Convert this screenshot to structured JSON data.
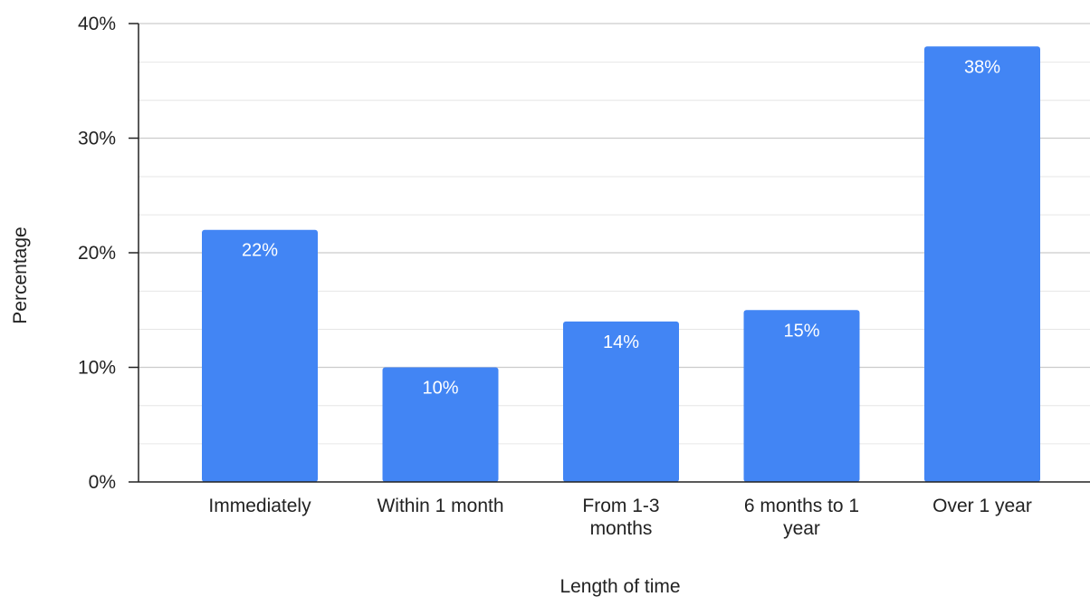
{
  "chart_data": {
    "type": "bar",
    "categories": [
      [
        "Immediately"
      ],
      [
        "Within 1 month"
      ],
      [
        "From 1-3",
        "months"
      ],
      [
        "6 months to 1",
        "year"
      ],
      [
        "Over 1 year"
      ]
    ],
    "values": [
      22,
      10,
      14,
      15,
      38
    ],
    "data_labels": [
      "22%",
      "10%",
      "14%",
      "15%",
      "38%"
    ],
    "title": "",
    "xlabel": "Length of time",
    "ylabel": "Percentage",
    "ylim": [
      0,
      40
    ],
    "y_ticks": [
      0,
      10,
      20,
      30,
      40
    ],
    "y_tick_labels": [
      "0%",
      "10%",
      "20%",
      "30%",
      "40%"
    ],
    "y_minor_step": 3.33,
    "grid": true,
    "legend": "none",
    "colors": {
      "bar": "#4285f4",
      "grid_major": "#cccccc",
      "grid_minor": "#e6e6e6",
      "axis": "#222222"
    }
  }
}
